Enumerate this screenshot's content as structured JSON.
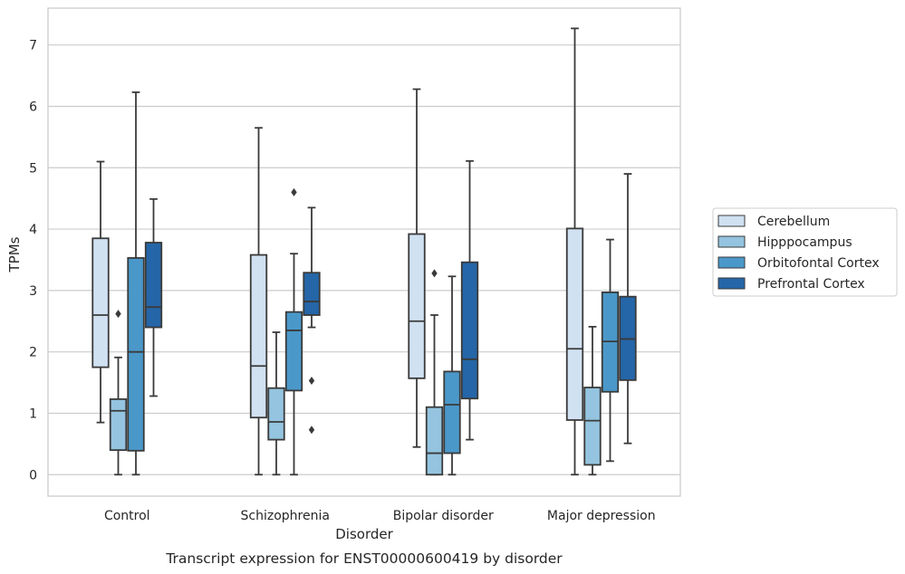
{
  "chart_data": {
    "type": "box",
    "caption": "Transcript expression for ENST00000600419 by disorder",
    "xlabel": "Disorder",
    "ylabel": "TPMs",
    "ylim": [
      -0.35,
      7.6
    ],
    "yticks": [
      0,
      1,
      2,
      3,
      4,
      5,
      6,
      7
    ],
    "grid": "horizontal",
    "legend_position": "right",
    "categories": [
      "Control",
      "Schizophrenia",
      "Bipolar disorder",
      "Major depression"
    ],
    "series": [
      {
        "name": "Cerebellum",
        "color": "#d0e1f2",
        "boxes": [
          {
            "whislo": 0.85,
            "q1": 1.75,
            "med": 2.6,
            "q3": 3.85,
            "whishi": 5.1,
            "fliers": []
          },
          {
            "whislo": 0.0,
            "q1": 0.93,
            "med": 1.77,
            "q3": 3.58,
            "whishi": 5.65,
            "fliers": []
          },
          {
            "whislo": 0.45,
            "q1": 1.57,
            "med": 2.5,
            "q3": 3.92,
            "whishi": 6.28,
            "fliers": []
          },
          {
            "whislo": 0.0,
            "q1": 0.89,
            "med": 2.05,
            "q3": 4.01,
            "whishi": 7.27,
            "fliers": []
          }
        ]
      },
      {
        "name": "Hipppocampus",
        "color": "#94c4df",
        "boxes": [
          {
            "whislo": 0.0,
            "q1": 0.4,
            "med": 1.04,
            "q3": 1.23,
            "whishi": 1.91,
            "fliers": [
              2.62
            ]
          },
          {
            "whislo": 0.0,
            "q1": 0.57,
            "med": 0.86,
            "q3": 1.41,
            "whishi": 2.32,
            "fliers": []
          },
          {
            "whislo": 0.0,
            "q1": 0.0,
            "med": 0.35,
            "q3": 1.1,
            "whishi": 2.6,
            "fliers": [
              3.28
            ]
          },
          {
            "whislo": 0.0,
            "q1": 0.16,
            "med": 0.88,
            "q3": 1.42,
            "whishi": 2.41,
            "fliers": []
          }
        ]
      },
      {
        "name": "Orbitofontal Cortex",
        "color": "#4a98c9",
        "boxes": [
          {
            "whislo": 0.0,
            "q1": 0.39,
            "med": 2.0,
            "q3": 3.53,
            "whishi": 6.23,
            "fliers": []
          },
          {
            "whislo": 0.0,
            "q1": 1.37,
            "med": 2.35,
            "q3": 2.65,
            "whishi": 3.6,
            "fliers": [
              4.6
            ]
          },
          {
            "whislo": 0.0,
            "q1": 0.35,
            "med": 1.14,
            "q3": 1.68,
            "whishi": 3.23,
            "fliers": []
          },
          {
            "whislo": 0.22,
            "q1": 1.35,
            "med": 2.17,
            "q3": 2.97,
            "whishi": 3.83,
            "fliers": []
          }
        ]
      },
      {
        "name": "Prefrontal Cortex",
        "color": "#2566a8",
        "boxes": [
          {
            "whislo": 1.28,
            "q1": 2.4,
            "med": 2.73,
            "q3": 3.78,
            "whishi": 4.49,
            "fliers": []
          },
          {
            "whislo": 2.4,
            "q1": 2.6,
            "med": 2.82,
            "q3": 3.29,
            "whishi": 4.35,
            "fliers": [
              1.53,
              0.73
            ]
          },
          {
            "whislo": 0.57,
            "q1": 1.24,
            "med": 1.88,
            "q3": 3.46,
            "whishi": 5.11,
            "fliers": []
          },
          {
            "whislo": 0.51,
            "q1": 1.54,
            "med": 2.21,
            "q3": 2.9,
            "whishi": 4.9,
            "fliers": []
          }
        ]
      }
    ]
  }
}
